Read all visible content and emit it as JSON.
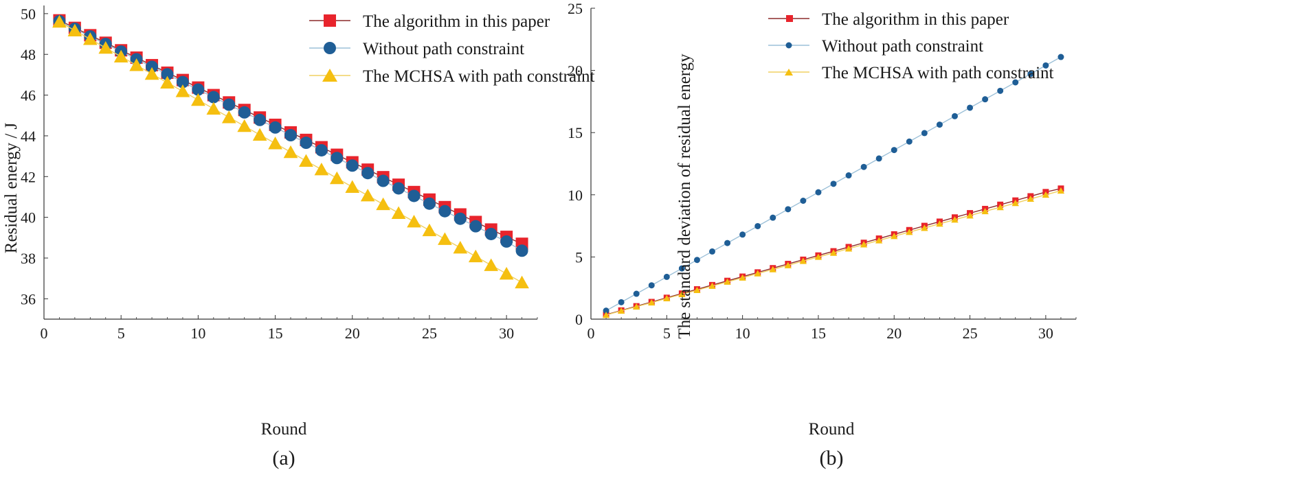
{
  "colors": {
    "series_a_line": "#8b2a2a",
    "series_a_marker": "#e8242c",
    "series_b_line": "#9cc0d8",
    "series_b_marker": "#1f5e96",
    "series_c_line": "#f0d060",
    "series_c_marker": "#f5bf10",
    "axis": "#333333"
  },
  "chart_data": [
    {
      "type": "line",
      "caption": "(a)",
      "xlabel": "Round",
      "ylabel": "Residual energy / J",
      "xlim": [
        0,
        32
      ],
      "ylim": [
        35,
        50.4
      ],
      "xticks": [
        0,
        5,
        10,
        15,
        20,
        25,
        30
      ],
      "yticks": [
        36,
        38,
        40,
        42,
        44,
        46,
        48,
        50
      ],
      "legend_position": "top-right",
      "x": [
        1,
        2,
        3,
        4,
        5,
        6,
        7,
        8,
        9,
        10,
        11,
        12,
        13,
        14,
        15,
        16,
        17,
        18,
        19,
        20,
        21,
        22,
        23,
        24,
        25,
        26,
        27,
        28,
        29,
        30,
        31
      ],
      "series": [
        {
          "name": "The algorithm in this paper",
          "marker": "square",
          "values": [
            49.67,
            49.3,
            48.94,
            48.57,
            48.2,
            47.84,
            47.47,
            47.1,
            46.74,
            46.37,
            46.0,
            45.64,
            45.27,
            44.9,
            44.54,
            44.17,
            43.8,
            43.44,
            43.07,
            42.7,
            42.34,
            41.97,
            41.6,
            41.24,
            40.87,
            40.5,
            40.14,
            39.77,
            39.4,
            39.04,
            38.7
          ]
        },
        {
          "name": "Without path constraint",
          "marker": "circle",
          "values": [
            49.63,
            49.26,
            48.88,
            48.51,
            48.14,
            47.76,
            47.39,
            47.02,
            46.64,
            46.27,
            45.9,
            45.53,
            45.15,
            44.78,
            44.41,
            44.03,
            43.66,
            43.29,
            42.91,
            42.54,
            42.17,
            41.79,
            41.42,
            41.05,
            40.67,
            40.3,
            39.93,
            39.56,
            39.18,
            38.81,
            38.36
          ]
        },
        {
          "name": "The MCHSA with path constraint",
          "marker": "triangle",
          "values": [
            49.6,
            49.17,
            48.75,
            48.32,
            47.89,
            47.47,
            47.04,
            46.61,
            46.19,
            45.76,
            45.33,
            44.91,
            44.48,
            44.05,
            43.63,
            43.2,
            42.77,
            42.35,
            41.92,
            41.49,
            41.07,
            40.64,
            40.21,
            39.79,
            39.36,
            38.93,
            38.51,
            38.08,
            37.65,
            37.23,
            36.8
          ]
        }
      ]
    },
    {
      "type": "line",
      "caption": "(b)",
      "xlabel": "Round",
      "ylabel": "The standard deviation of residual energy",
      "xlim": [
        0,
        32
      ],
      "ylim": [
        0,
        25
      ],
      "xticks": [
        0,
        5,
        10,
        15,
        20,
        25,
        30
      ],
      "yticks": [
        0,
        5,
        10,
        15,
        20,
        25
      ],
      "legend_position": "top-left",
      "x": [
        1,
        2,
        3,
        4,
        5,
        6,
        7,
        8,
        9,
        10,
        11,
        12,
        13,
        14,
        15,
        16,
        17,
        18,
        19,
        20,
        21,
        22,
        23,
        24,
        25,
        26,
        27,
        28,
        29,
        30,
        31
      ],
      "series": [
        {
          "name": "The algorithm in this paper",
          "marker": "square",
          "values": [
            0.36,
            0.7,
            1.04,
            1.38,
            1.72,
            2.06,
            2.4,
            2.74,
            3.08,
            3.42,
            3.76,
            4.1,
            4.44,
            4.78,
            5.12,
            5.46,
            5.8,
            6.14,
            6.48,
            6.82,
            7.16,
            7.5,
            7.84,
            8.18,
            8.52,
            8.86,
            9.2,
            9.54,
            9.88,
            10.22,
            10.5
          ]
        },
        {
          "name": "Without path constraint",
          "marker": "circle",
          "values": [
            0.68,
            1.36,
            2.04,
            2.72,
            3.4,
            4.08,
            4.76,
            5.44,
            6.12,
            6.8,
            7.48,
            8.16,
            8.84,
            9.52,
            10.2,
            10.88,
            11.56,
            12.24,
            12.92,
            13.6,
            14.28,
            14.96,
            15.64,
            16.32,
            17.0,
            17.68,
            18.36,
            19.04,
            19.72,
            20.4,
            21.08
          ]
        },
        {
          "name": "The MCHSA with path constraint",
          "marker": "triangle",
          "values": [
            0.33,
            0.67,
            1.0,
            1.33,
            1.67,
            2.0,
            2.33,
            2.67,
            3.0,
            3.33,
            3.67,
            4.0,
            4.33,
            4.67,
            5.0,
            5.33,
            5.67,
            6.0,
            6.33,
            6.67,
            7.0,
            7.33,
            7.67,
            8.0,
            8.33,
            8.67,
            9.0,
            9.33,
            9.67,
            10.0,
            10.33
          ]
        }
      ]
    }
  ]
}
